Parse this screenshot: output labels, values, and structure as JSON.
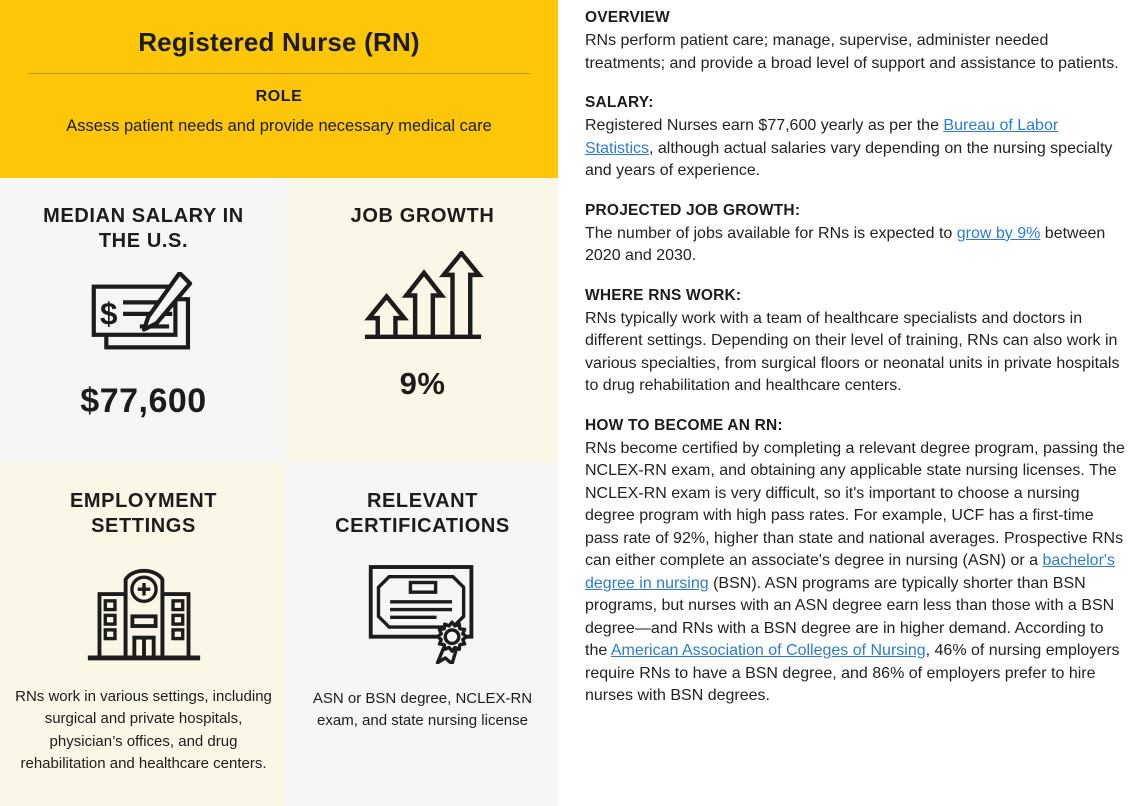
{
  "colors": {
    "header_yellow": "#FDC608",
    "cell_cream": "#FBF7E6",
    "cell_gray": "#F6F6F6",
    "link_blue": "#2B7CD9",
    "text_ink": "#1C1C1C"
  },
  "left_panel": {
    "header": {
      "title": "Registered Nurse (RN)",
      "role_label": "ROLE",
      "role_text": "Assess patient needs and provide necessary medical care"
    },
    "cells": {
      "median_salary": {
        "title": "MEDIAN SALARY IN THE U.S.",
        "icon": "paycheck-icon",
        "value": "$77,600"
      },
      "job_growth": {
        "title": "JOB GROWTH",
        "icon": "growth-arrows-icon",
        "value": "9%"
      },
      "employment_settings": {
        "title": "EMPLOYMENT SETTINGS",
        "icon": "hospital-icon",
        "description": "RNs work in various settings, including surgical and private hospitals, physician’s offices, and drug rehabilitation and healthcare centers."
      },
      "relevant_certifications": {
        "title": "RELEVANT CERTIFICATIONS",
        "icon": "certificate-icon",
        "description": "ASN or BSN degree, NCLEX-RN exam, and state nursing license"
      }
    }
  },
  "right_panel": {
    "sections": [
      {
        "heading": "OVERVIEW",
        "segments": [
          {
            "text": "RNs perform patient care; manage, supervise, administer needed treatments; and provide a broad level of support and assistance to patients."
          }
        ]
      },
      {
        "heading": "SALARY:",
        "segments": [
          {
            "text": "Registered Nurses earn $77,600 yearly as per the "
          },
          {
            "text": "Bureau of Labor Statistics",
            "link": true
          },
          {
            "text": ", although actual salaries vary depending on the nursing specialty and years of experience."
          }
        ]
      },
      {
        "heading": "PROJECTED JOB GROWTH:",
        "segments": [
          {
            "text": "The number of jobs available for RNs is expected to "
          },
          {
            "text": "grow by 9%",
            "link": true
          },
          {
            "text": " between 2020 and 2030."
          }
        ]
      },
      {
        "heading": "WHERE RNS WORK:",
        "segments": [
          {
            "text": "RNs typically work with a team of healthcare specialists and doctors in different settings. Depending on their level of training, RNs can also work in various specialties, from surgical floors or neonatal units in private hospitals to drug rehabilitation and healthcare centers."
          }
        ]
      },
      {
        "heading": "HOW TO BECOME AN RN:",
        "segments": [
          {
            "text": "RNs become certified by completing a relevant degree program, passing the NCLEX-RN exam, and obtaining any applicable state nursing licenses. The NCLEX-RN exam is very difficult, so it's important to choose a nursing degree program with high pass rates. For example, UCF has a first-time pass rate of 92%, higher than state and national averages. Prospective RNs can either complete an associate's degree in nursing (ASN) or a "
          },
          {
            "text": "bachelor's degree in nursing",
            "link": true
          },
          {
            "text": " (BSN). ASN programs are typically shorter than BSN programs, but nurses with an ASN degree earn less than those with a BSN degree—and RNs with a BSN degree are in higher demand. According to the "
          },
          {
            "text": "American Association of Colleges of Nursing",
            "link": true
          },
          {
            "text": ", 46% of nursing employers require RNs to have a BSN degree, and 86% of employers prefer to hire nurses with BSN degrees."
          }
        ]
      }
    ]
  }
}
